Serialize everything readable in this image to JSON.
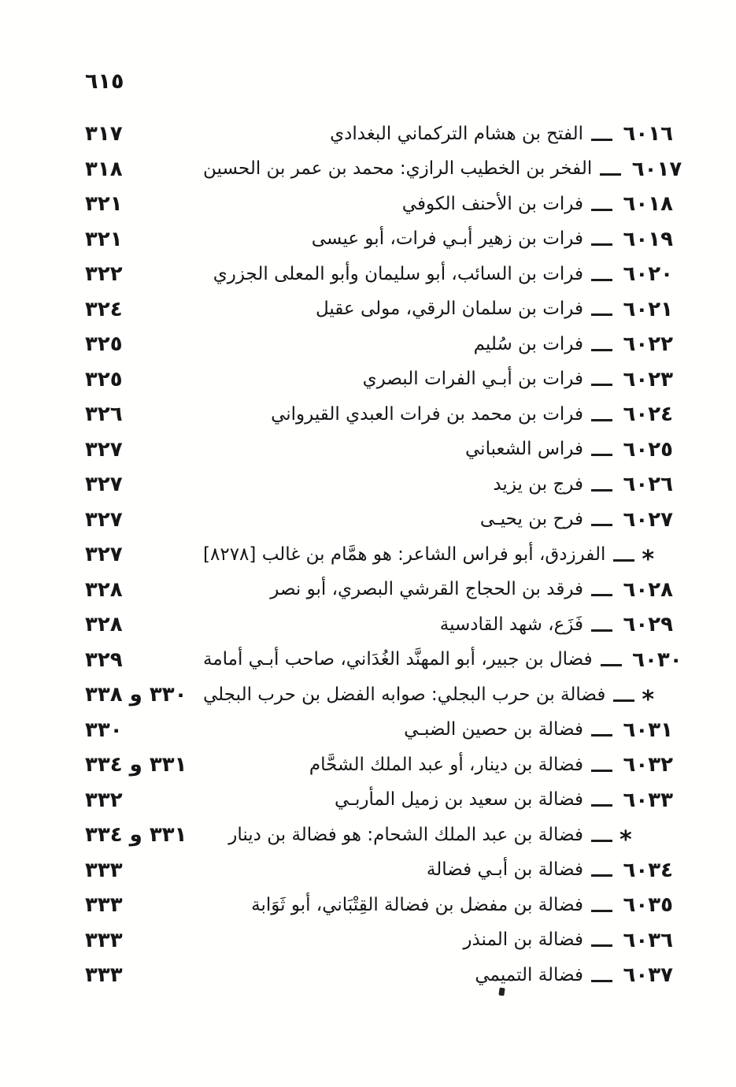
{
  "page": {
    "folio_number": "٦١٥"
  },
  "index": {
    "entries": [
      {
        "marker": "٦٠١٦",
        "type": "number",
        "name": "الفتح بن هشام التركماني البغدادي",
        "page": "٣١٧"
      },
      {
        "marker": "٦٠١٧",
        "type": "number",
        "name": "الفخر بن الخطيب الرازي: محمد بن عمر بن الحسين",
        "page": "٣١٨"
      },
      {
        "marker": "٦٠١٨",
        "type": "number",
        "name": "فرات بن الأحنف الكوفي",
        "page": "٣٢١"
      },
      {
        "marker": "٦٠١٩",
        "type": "number",
        "name": "فرات بن زهير أبـي فرات، أبو عيسى",
        "page": "٣٢١"
      },
      {
        "marker": "٦٠٢٠",
        "type": "number",
        "name": "فرات بن السائب، أبو سليمان وأبو المعلى الجزري",
        "page": "٣٢٢"
      },
      {
        "marker": "٦٠٢١",
        "type": "number",
        "name": "فرات بن سلمان الرقي، مولى عقيل",
        "page": "٣٢٤"
      },
      {
        "marker": "٦٠٢٢",
        "type": "number",
        "name": "فرات بن سُليم",
        "page": "٣٢٥"
      },
      {
        "marker": "٦٠٢٣",
        "type": "number",
        "name": "فرات بن أبـي الفرات البصري",
        "page": "٣٢٥"
      },
      {
        "marker": "٦٠٢٤",
        "type": "number",
        "name": "فرات بن محمد بن فرات العبدي القيرواني",
        "page": "٣٢٦"
      },
      {
        "marker": "٦٠٢٥",
        "type": "number",
        "name": "فراس الشعباني",
        "page": "٣٢٧"
      },
      {
        "marker": "٦٠٢٦",
        "type": "number",
        "name": "فرج بن يزيد",
        "page": "٣٢٧"
      },
      {
        "marker": "٦٠٢٧",
        "type": "number",
        "name": "فرح بن يحيـى",
        "page": "٣٢٧"
      },
      {
        "marker": "*",
        "type": "star",
        "name": "الفرزدق، أبو فراس الشاعر: هو همَّام بن غالب [٨٢٧٨]",
        "page": "٣٢٧"
      },
      {
        "marker": "٦٠٢٨",
        "type": "number",
        "name": "فرقد بن الحجاج القرشي البصري، أبو نصر",
        "page": "٣٢٨"
      },
      {
        "marker": "٦٠٢٩",
        "type": "number",
        "name": "فَزَع، شهد القادسية",
        "page": "٣٢٨"
      },
      {
        "marker": "٦٠٣٠",
        "type": "number",
        "name": "فضال بن جبير، أبو المهنَّد الغُدَاني، صاحب أبـي أمامة",
        "page": "٣٢٩"
      },
      {
        "marker": "*",
        "type": "star",
        "name": "فضالة بن حرب البجلي: صوابه الفضل بن حرب البجلي",
        "page": "٣٣٠ و ٣٣٨"
      },
      {
        "marker": "٦٠٣١",
        "type": "number",
        "name": "فضالة بن حصين الضبـي",
        "page": "٣٣٠"
      },
      {
        "marker": "٦٠٣٢",
        "type": "number",
        "name": "فضالة بن دينار، أو عبد الملك الشحَّام",
        "page": "٣٣١ و ٣٣٤"
      },
      {
        "marker": "٦٠٣٣",
        "type": "number",
        "name": "فضالة بن سعيد بن زميل المأربـي",
        "page": "٣٣٢"
      },
      {
        "marker": "*",
        "type": "star",
        "name": "فضالة بن عبد الملك الشحام: هو فضالة بن دينار",
        "page": "٣٣١ و ٣٣٤"
      },
      {
        "marker": "٦٠٣٤",
        "type": "number",
        "name": "فضالة بن أبـي فضالة",
        "page": "٣٣٣"
      },
      {
        "marker": "٦٠٣٥",
        "type": "number",
        "name": "فضالة بن مفضل بن فضالة القِتْبَاني، أبو ثَوَابة",
        "page": "٣٣٣"
      },
      {
        "marker": "٦٠٣٦",
        "type": "number",
        "name": "فضالة بن المنذر",
        "page": "٣٣٣"
      },
      {
        "marker": "٦٠٣٧",
        "type": "number",
        "name": "فضالة التميمي",
        "page": "٣٣٣"
      }
    ]
  }
}
